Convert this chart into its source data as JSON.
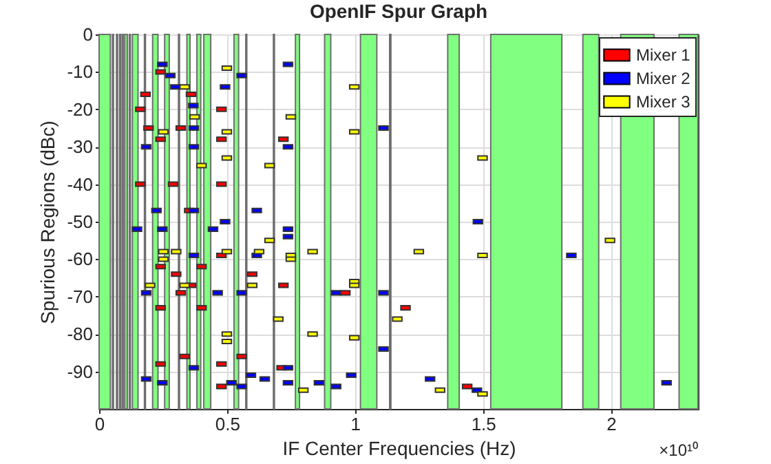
{
  "chart_data": {
    "type": "scatter",
    "title": "OpenIF Spur Graph",
    "xlabel": "IF Center Frequencies (Hz)",
    "ylabel": "Spurious Regions (dBc)",
    "annotations": [
      "×10¹⁰"
    ],
    "xlim": [
      0,
      2.34
    ],
    "ylim": [
      -100,
      0
    ],
    "xticks": [
      0,
      0.5,
      1,
      1.5,
      2
    ],
    "yticks": [
      0,
      -10,
      -20,
      -30,
      -40,
      -50,
      -60,
      -70,
      -80,
      -90
    ],
    "grid": true,
    "legend": "top right",
    "marker": "square",
    "bands": [
      {
        "axis": "x",
        "from": 0,
        "to": 0.044,
        "color": "#80ff80"
      },
      {
        "axis": "x",
        "from": 0.052,
        "to": 0.056,
        "color": "#80ff80"
      },
      {
        "axis": "x",
        "from": 0.068,
        "to": 0.072,
        "color": "#80ff80"
      },
      {
        "axis": "x",
        "from": 0.08,
        "to": 0.084,
        "color": "#80ff80"
      },
      {
        "axis": "x",
        "from": 0.09,
        "to": 0.094,
        "color": "#80ff80"
      },
      {
        "axis": "x",
        "from": 0.1,
        "to": 0.11,
        "color": "#80ff80"
      },
      {
        "axis": "x",
        "from": 0.118,
        "to": 0.122,
        "color": "#80ff80"
      },
      {
        "axis": "x",
        "from": 0.13,
        "to": 0.152,
        "color": "#80ff80"
      },
      {
        "axis": "x",
        "from": 0.177,
        "to": 0.181,
        "color": "#80ff80"
      },
      {
        "axis": "x",
        "from": 0.209,
        "to": 0.23,
        "color": "#80ff80"
      },
      {
        "axis": "x",
        "from": 0.256,
        "to": 0.274,
        "color": "#80ff80"
      },
      {
        "axis": "x",
        "from": 0.31,
        "to": 0.314,
        "color": "#80ff80"
      },
      {
        "axis": "x",
        "from": 0.343,
        "to": 0.355,
        "color": "#80ff80"
      },
      {
        "axis": "x",
        "from": 0.382,
        "to": 0.397,
        "color": "#80ff80"
      },
      {
        "axis": "x",
        "from": 0.409,
        "to": 0.436,
        "color": "#80ff80"
      },
      {
        "axis": "x",
        "from": 0.527,
        "to": 0.545,
        "color": "#80ff80"
      },
      {
        "axis": "x",
        "from": 0.573,
        "to": 0.577,
        "color": "#80ff80"
      },
      {
        "axis": "x",
        "from": 0.681,
        "to": 0.685,
        "color": "#80ff80"
      },
      {
        "axis": "x",
        "from": 0.767,
        "to": 0.783,
        "color": "#80ff80"
      },
      {
        "axis": "x",
        "from": 0.881,
        "to": 0.905,
        "color": "#80ff80"
      },
      {
        "axis": "x",
        "from": 1.021,
        "to": 1.085,
        "color": "#80ff80"
      },
      {
        "axis": "x",
        "from": 1.135,
        "to": 1.14,
        "color": "#80ff80"
      },
      {
        "axis": "x",
        "from": 1.362,
        "to": 1.407,
        "color": "#80ff80"
      },
      {
        "axis": "x",
        "from": 1.53,
        "to": 1.808,
        "color": "#80ff80"
      },
      {
        "axis": "x",
        "from": 1.89,
        "to": 1.952,
        "color": "#80ff80"
      },
      {
        "axis": "x",
        "from": 2.038,
        "to": 2.168,
        "color": "#80ff80"
      },
      {
        "axis": "x",
        "from": 2.266,
        "to": 2.34,
        "color": "#80ff80"
      }
    ],
    "series": [
      {
        "name": "Mixer 1",
        "color": "#ff0000",
        "x": [
          0.24,
          0.359,
          0.181,
          0.161,
          0.478,
          0.319,
          0.193,
          0.24,
          0.478,
          0.289,
          0.161,
          0.478,
          0.352,
          0.478,
          0.24,
          0.4,
          0.301,
          0.359,
          0.319,
          0.24,
          0.4,
          0.334,
          0.24,
          0.478,
          0.478,
          0.72,
          0.598,
          0.72,
          0.962,
          0.557,
          0.713,
          1.197,
          1.438
        ],
        "values": [
          -10,
          -16,
          -16,
          -20,
          -20,
          -25,
          -25,
          -28,
          -28,
          -40,
          -40,
          -40,
          -47,
          -59,
          -62,
          -62,
          -64,
          -67,
          -69,
          -73,
          -73,
          -86,
          -88,
          -88,
          -94,
          -28,
          -64,
          -67,
          -69,
          -86,
          -89,
          -73,
          -94
        ]
      },
      {
        "name": "Mixer 2",
        "color": "#0000ff",
        "x": [
          0.247,
          0.278,
          0.298,
          0.492,
          0.368,
          0.37,
          0.37,
          0.184,
          0.37,
          0.224,
          0.492,
          0.247,
          0.445,
          0.148,
          0.37,
          0.184,
          0.463,
          0.37,
          0.184,
          0.247,
          0.517,
          0.557,
          0.738,
          0.738,
          0.616,
          0.738,
          0.738,
          0.616,
          0.557,
          0.926,
          0.738,
          0.593,
          0.647,
          0.738,
          0.859,
          0.926,
          0.985,
          0.557,
          1.111,
          1.111,
          1.111,
          1.48,
          1.293,
          1.476,
          1.845,
          2.217
        ],
        "values": [
          -8,
          -11,
          -14,
          -14,
          -19,
          -25,
          -30,
          -30,
          -47,
          -47,
          -50,
          -52,
          -52,
          -52,
          -59,
          -69,
          -69,
          -89,
          -92,
          -93,
          -93,
          -11,
          -8,
          -30,
          -47,
          -52,
          -54,
          -59,
          -69,
          -69,
          -89,
          -91,
          -92,
          -93,
          -93,
          -94,
          -91,
          -94,
          -25,
          -69,
          -84,
          -50,
          -92,
          -95,
          -59,
          -93
        ]
      },
      {
        "name": "Mixer 3",
        "color": "#ffff00",
        "x": [
          0.499,
          0.334,
          0.373,
          0.251,
          0.499,
          0.499,
          0.4,
          0.301,
          0.251,
          0.499,
          0.251,
          0.334,
          0.199,
          0.499,
          0.499,
          0.997,
          0.749,
          0.997,
          0.666,
          0.666,
          0.625,
          0.749,
          0.749,
          0.834,
          0.598,
          0.997,
          0.997,
          0.7,
          0.834,
          0.997,
          0.798,
          1.498,
          1.498,
          1.249,
          1.165,
          1.332,
          1.498,
          1.996
        ],
        "values": [
          -9,
          -14,
          -22,
          -26,
          -26,
          -33,
          -35,
          -58,
          -58,
          -58,
          -60,
          -67,
          -67,
          -80,
          -82,
          -14,
          -22,
          -26,
          -35,
          -55,
          -58,
          -59,
          -60,
          -58,
          -67,
          -66,
          -67,
          -76,
          -80,
          -81,
          -95,
          -33,
          -59,
          -58,
          -76,
          -95,
          -96,
          -55
        ]
      }
    ]
  }
}
